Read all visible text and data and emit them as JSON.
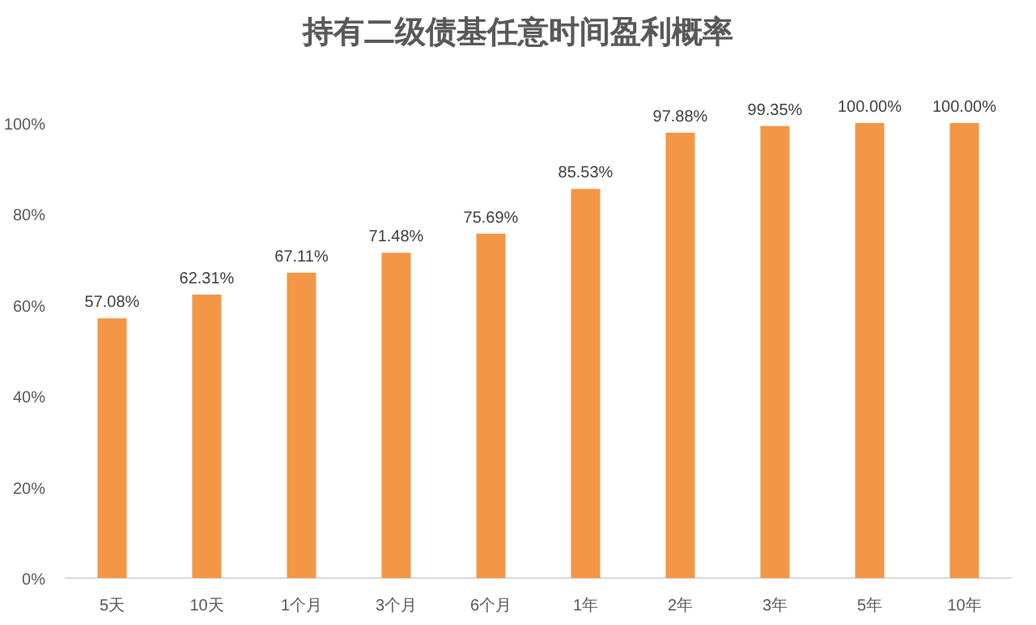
{
  "chart_data": {
    "type": "bar",
    "title": "持有二级债基任意时间盈利概率",
    "categories": [
      "5天",
      "10天",
      "1个月",
      "3个月",
      "6个月",
      "1年",
      "2年",
      "3年",
      "5年",
      "10年"
    ],
    "values": [
      57.08,
      62.31,
      67.11,
      71.48,
      75.69,
      85.53,
      97.88,
      99.35,
      100,
      100
    ],
    "value_labels": [
      "57.08%",
      "62.31%",
      "67.11%",
      "71.48%",
      "75.69%",
      "85.53%",
      "97.88%",
      "99.35%",
      "100.00%",
      "100.00%"
    ],
    "color": "#f39646",
    "ylim": [
      0,
      100
    ],
    "yticks": [
      {
        "value": 0,
        "label": "0%"
      },
      {
        "value": 20,
        "label": "20%"
      },
      {
        "value": 40,
        "label": "40%"
      },
      {
        "value": 60,
        "label": "60%"
      },
      {
        "value": 80,
        "label": "80%"
      },
      {
        "value": 100,
        "label": "100%"
      }
    ],
    "data_labels": false
  }
}
